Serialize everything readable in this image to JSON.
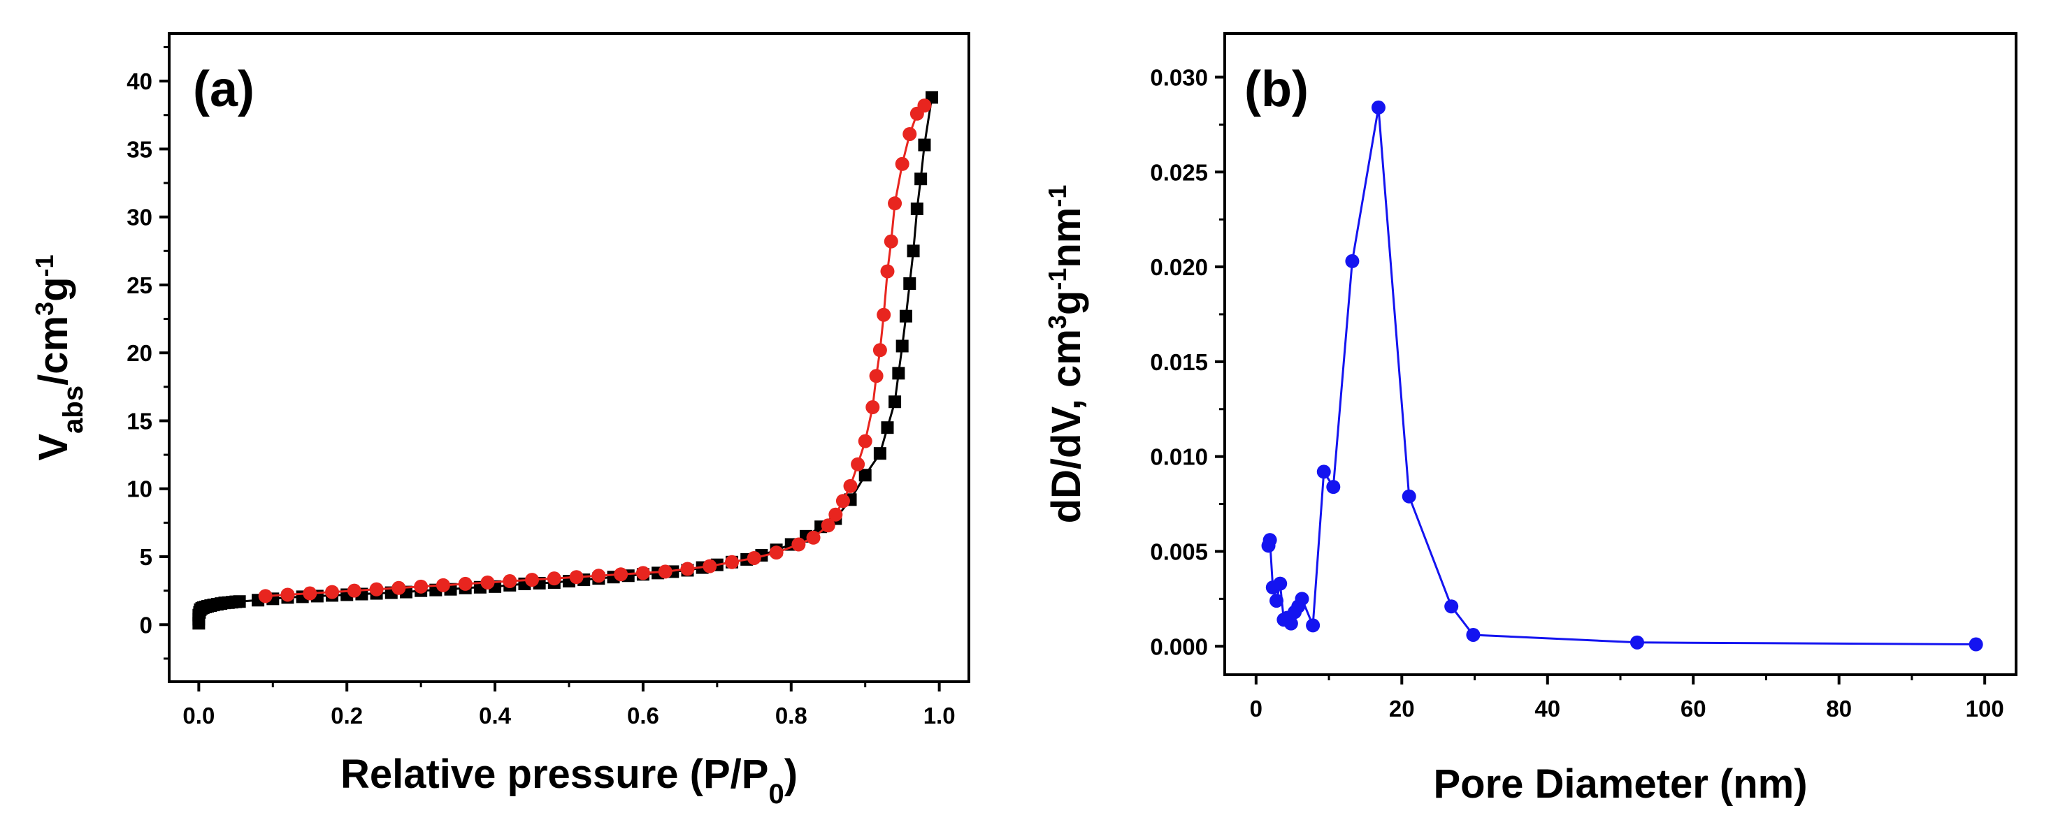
{
  "chart_data": [
    {
      "type": "scatter",
      "panel_label": "(a)",
      "xlabel": {
        "main": "Relative pressure (P/P",
        "sub": "0",
        "close": ")"
      },
      "ylabel": {
        "v": "V",
        "sub": "abs",
        "mid": "/cm",
        "sup": "3",
        "g": "g",
        "sup2": "-1"
      },
      "xlim": [
        -0.04,
        1.04
      ],
      "ylim": [
        -4.2,
        43.5
      ],
      "xticks": [
        "0.0",
        "0.2",
        "0.4",
        "0.6",
        "0.8",
        "1.0"
      ],
      "xtick_values": [
        0,
        0.2,
        0.4,
        0.6,
        0.8,
        1.0
      ],
      "yticks": [
        "0",
        "5",
        "10",
        "15",
        "20",
        "25",
        "30",
        "35",
        "40"
      ],
      "ytick_values": [
        0,
        5,
        10,
        15,
        20,
        25,
        30,
        35,
        40
      ],
      "grid": false,
      "series": [
        {
          "color": "#000000",
          "marker": "square",
          "x": [
            0.0,
            0.0,
            0.0,
            0.001,
            0.002,
            0.004,
            0.006,
            0.009,
            0.012,
            0.016,
            0.02,
            0.025,
            0.03,
            0.035,
            0.04,
            0.045,
            0.05,
            0.055,
            0.08,
            0.1,
            0.12,
            0.14,
            0.16,
            0.18,
            0.2,
            0.22,
            0.24,
            0.26,
            0.28,
            0.3,
            0.32,
            0.34,
            0.36,
            0.38,
            0.4,
            0.42,
            0.44,
            0.46,
            0.48,
            0.5,
            0.52,
            0.54,
            0.56,
            0.58,
            0.6,
            0.62,
            0.64,
            0.66,
            0.68,
            0.7,
            0.72,
            0.74,
            0.76,
            0.78,
            0.8,
            0.82,
            0.84,
            0.86,
            0.88,
            0.9,
            0.92,
            0.93,
            0.94,
            0.945,
            0.95,
            0.955,
            0.96,
            0.965,
            0.97,
            0.975,
            0.98,
            0.99
          ],
          "y": [
            0.1,
            0.4,
            0.7,
            0.9,
            1.1,
            1.2,
            1.25,
            1.3,
            1.35,
            1.4,
            1.45,
            1.5,
            1.55,
            1.6,
            1.62,
            1.65,
            1.68,
            1.7,
            1.8,
            1.9,
            2.0,
            2.05,
            2.1,
            2.15,
            2.2,
            2.25,
            2.3,
            2.35,
            2.4,
            2.5,
            2.55,
            2.6,
            2.7,
            2.75,
            2.8,
            2.9,
            3.0,
            3.05,
            3.1,
            3.2,
            3.3,
            3.4,
            3.5,
            3.6,
            3.7,
            3.8,
            3.9,
            4.0,
            4.2,
            4.4,
            4.6,
            4.8,
            5.1,
            5.5,
            5.9,
            6.5,
            7.2,
            7.8,
            9.2,
            11.0,
            12.6,
            14.5,
            16.4,
            18.5,
            20.5,
            22.7,
            25.1,
            27.5,
            30.6,
            32.8,
            35.3,
            38.8
          ]
        },
        {
          "color": "#e8251f",
          "marker": "circle",
          "x": [
            0.09,
            0.12,
            0.15,
            0.18,
            0.21,
            0.24,
            0.27,
            0.3,
            0.33,
            0.36,
            0.39,
            0.42,
            0.45,
            0.48,
            0.51,
            0.54,
            0.57,
            0.6,
            0.63,
            0.66,
            0.69,
            0.72,
            0.75,
            0.78,
            0.81,
            0.83,
            0.85,
            0.86,
            0.87,
            0.88,
            0.89,
            0.9,
            0.91,
            0.915,
            0.92,
            0.925,
            0.93,
            0.935,
            0.94,
            0.95,
            0.96,
            0.97,
            0.98
          ],
          "y": [
            2.1,
            2.2,
            2.3,
            2.4,
            2.5,
            2.6,
            2.7,
            2.8,
            2.9,
            3.0,
            3.1,
            3.2,
            3.3,
            3.4,
            3.5,
            3.6,
            3.7,
            3.8,
            3.9,
            4.1,
            4.3,
            4.6,
            4.9,
            5.3,
            5.9,
            6.4,
            7.3,
            8.1,
            9.1,
            10.2,
            11.8,
            13.5,
            16.0,
            18.3,
            20.2,
            22.8,
            26.0,
            28.2,
            31.0,
            33.9,
            36.1,
            37.6,
            38.2
          ]
        }
      ]
    },
    {
      "type": "line",
      "panel_label": "(b)",
      "xlabel": "Pore Diameter (nm)",
      "ylabel": {
        "main": "dD/dV, cm",
        "sup": "3",
        "g": "g",
        "sup2": "-1",
        "nm": "nm",
        "sup3": "-1"
      },
      "xlim": [
        -4.3,
        104.3
      ],
      "ylim": [
        -0.0015,
        0.0323
      ],
      "xticks": [
        "0",
        "20",
        "40",
        "60",
        "80",
        "100"
      ],
      "xtick_values": [
        0,
        20,
        40,
        60,
        80,
        100
      ],
      "yticks": [
        "0.000",
        "0.005",
        "0.010",
        "0.015",
        "0.020",
        "0.025",
        "0.030"
      ],
      "ytick_values": [
        0,
        0.005,
        0.01,
        0.015,
        0.02,
        0.025,
        0.03
      ],
      "grid": false,
      "series": [
        {
          "color": "#1414f0",
          "marker": "circle",
          "x": [
            1.7,
            1.9,
            2.3,
            2.8,
            3.3,
            3.8,
            4.3,
            4.8,
            5.3,
            5.8,
            6.3,
            7.8,
            9.3,
            10.6,
            13.2,
            16.8,
            21.0,
            26.8,
            29.8,
            52.3,
            98.8
          ],
          "y": [
            0.0053,
            0.0056,
            0.0031,
            0.0024,
            0.0033,
            0.0014,
            0.0015,
            0.0012,
            0.0018,
            0.0021,
            0.0025,
            0.0011,
            0.0092,
            0.0084,
            0.0203,
            0.0284,
            0.0079,
            0.0021,
            0.0006,
            0.0002,
            0.0001
          ]
        }
      ]
    }
  ]
}
